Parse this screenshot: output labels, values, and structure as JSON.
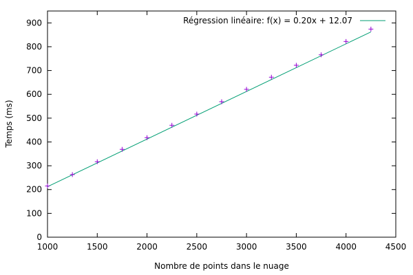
{
  "chart_data": {
    "type": "scatter",
    "xlabel": "Nombre de points dans le nuage",
    "ylabel": "Temps (ms)",
    "xlim": [
      1000,
      4500
    ],
    "ylim": [
      0,
      950
    ],
    "xticks": [
      1000,
      1500,
      2000,
      2500,
      3000,
      3500,
      4000,
      4500
    ],
    "yticks": [
      0,
      100,
      200,
      300,
      400,
      500,
      600,
      700,
      800,
      900
    ],
    "legend_position": "top-right",
    "grid": false,
    "series": [
      {
        "kind": "points",
        "marker": "+",
        "color": "#9400d3",
        "x": [
          1000,
          1250,
          1500,
          1750,
          2000,
          2250,
          2500,
          2750,
          3000,
          3250,
          3500,
          3750,
          4000,
          4250
        ],
        "y": [
          215,
          263,
          317,
          369,
          418,
          470,
          517,
          569,
          621,
          672,
          722,
          766,
          822,
          874
        ]
      },
      {
        "kind": "regression",
        "name": "Régression linéaire: f(x) = 0.20x + 12.07",
        "color": "#009e73",
        "slope": 0.2,
        "intercept": 12.07,
        "x_range": [
          1000,
          4250
        ]
      }
    ]
  }
}
